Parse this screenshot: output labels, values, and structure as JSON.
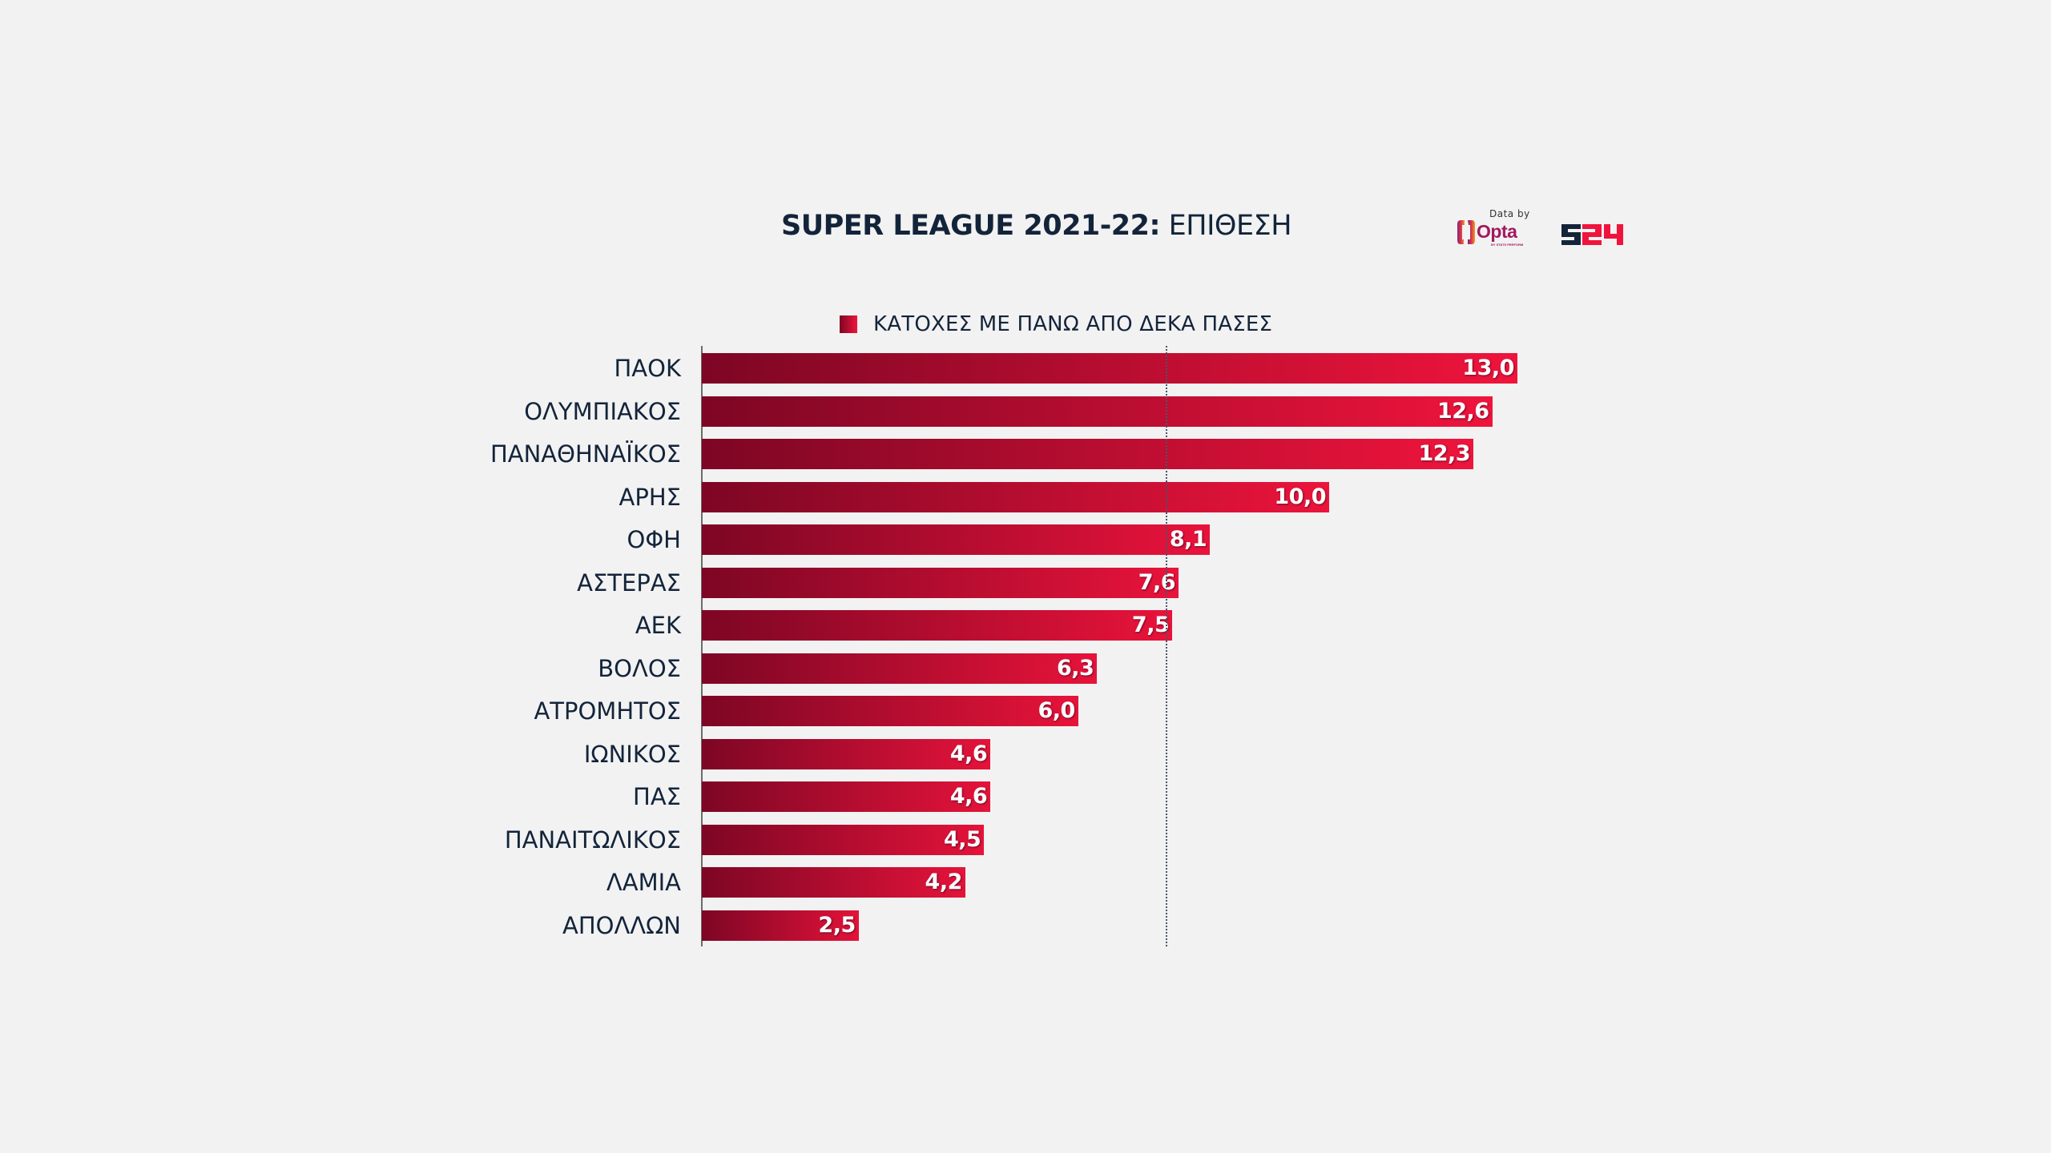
{
  "header": {
    "title_bold": "SUPER LEAGUE 2021-22:",
    "title_regular": "ΕΠΙΘΕΣΗ"
  },
  "branding": {
    "data_by": "Data by",
    "opta": "Opta",
    "opta_sub": "BY STATS PERFORM",
    "s24_part1": "S",
    "s24_part2": "24"
  },
  "colors": {
    "bar_start": "#7d0624",
    "bar_end": "#f0143c",
    "text": "#13243a",
    "background": "#f2f2f2"
  },
  "chart_data": {
    "type": "bar",
    "orientation": "horizontal",
    "title": "SUPER LEAGUE 2021-22: ΕΠΙΘΕΣΗ",
    "legend": [
      "ΚΑΤΟΧΕΣ ΜΕ ΠΑΝΩ ΑΠΟ ΔΕΚΑ ΠΑΣΕΣ"
    ],
    "legend_position": "top",
    "categories": [
      "ΠΑΟΚ",
      "ΟΛΥΜΠΙΑΚΟΣ",
      "ΠΑΝΑΘΗΝΑΪΚΟΣ",
      "ΑΡΗΣ",
      "ΟΦΗ",
      "ΑΣΤΕΡΑΣ",
      "ΑΕΚ",
      "ΒΟΛΟΣ",
      "ΑΤΡΟΜΗΤΟΣ",
      "ΙΩΝΙΚΟΣ",
      "ΠΑΣ",
      "ΠΑΝΑΙΤΩΛΙΚΟΣ",
      "ΛΑΜΙΑ",
      "ΑΠΟΛΛΩΝ"
    ],
    "values": [
      13.0,
      12.6,
      12.3,
      10.0,
      8.1,
      7.6,
      7.5,
      6.3,
      6.0,
      4.6,
      4.6,
      4.5,
      4.2,
      2.5
    ],
    "value_labels": [
      "13,0",
      "12,6",
      "12,3",
      "10,0",
      "8,1",
      "7,6",
      "7,5",
      "6,3",
      "6,0",
      "4,6",
      "4,6",
      "4,5",
      "4,2",
      "2,5"
    ],
    "reference_line": {
      "type": "average",
      "value": 7.4
    },
    "xlabel": "",
    "ylabel": "",
    "xlim": [
      0,
      13.0
    ],
    "grid": false
  }
}
